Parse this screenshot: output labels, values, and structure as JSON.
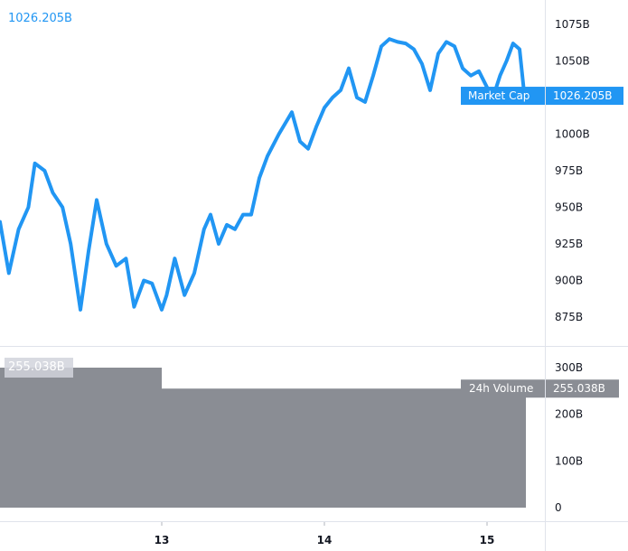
{
  "chart_data": [
    {
      "type": "line",
      "series": [
        {
          "name": "Market Cap",
          "color": "#2196f3",
          "current_value_label": "1026.205B",
          "x": [
            12.0,
            12.06,
            12.12,
            12.18,
            12.22,
            12.28,
            12.33,
            12.39,
            12.44,
            12.5,
            12.55,
            12.6,
            12.66,
            12.72,
            12.78,
            12.83,
            12.89,
            12.94,
            13.0,
            13.03,
            13.08,
            13.14,
            13.2,
            13.26,
            13.3,
            13.35,
            13.4,
            13.45,
            13.5,
            13.55,
            13.6,
            13.65,
            13.72,
            13.8,
            13.85,
            13.9,
            13.95,
            14.0,
            14.05,
            14.1,
            14.15,
            14.2,
            14.25,
            14.3,
            14.35,
            14.4,
            14.45,
            14.5,
            14.55,
            14.6,
            14.65,
            14.7,
            14.75,
            14.8,
            14.85,
            14.9,
            14.95,
            15.0,
            15.04,
            15.08,
            15.12,
            15.16,
            15.2,
            15.23
          ],
          "values": [
            940,
            905,
            935,
            950,
            980,
            975,
            960,
            950,
            925,
            880,
            920,
            955,
            925,
            910,
            915,
            882,
            900,
            898,
            880,
            890,
            915,
            890,
            905,
            935,
            945,
            925,
            938,
            935,
            945,
            945,
            970,
            985,
            1000,
            1015,
            995,
            990,
            1005,
            1018,
            1025,
            1030,
            1045,
            1025,
            1022,
            1040,
            1060,
            1065,
            1063,
            1062,
            1058,
            1048,
            1030,
            1055,
            1063,
            1060,
            1045,
            1040,
            1043,
            1032,
            1026.205,
            1040,
            1050,
            1062,
            1058,
            1026.205
          ],
          "axis_label": "1026.205B"
        }
      ],
      "yticks": [
        "1075B",
        "1050B",
        "1000B",
        "975B",
        "950B",
        "925B",
        "900B",
        "875B"
      ],
      "ytick_values": [
        1075,
        1050,
        1000,
        975,
        950,
        925,
        900,
        875
      ],
      "ylim": [
        867,
        1087
      ]
    },
    {
      "type": "bar",
      "series": [
        {
          "name": "24h Volume",
          "color": "#8a8d94",
          "current_value_label": "255.038B",
          "bars": [
            {
              "x_start": 12.0,
              "x_end": 13.0,
              "value": 300
            },
            {
              "x_start": 13.0,
              "x_end": 15.25,
              "value": 255.038
            }
          ]
        }
      ],
      "legend_value_label": "255.038B",
      "yticks": [
        "300B",
        "200B",
        "100B",
        "0"
      ],
      "ytick_values": [
        300,
        200,
        100,
        0
      ],
      "ylim": [
        0,
        300
      ]
    }
  ],
  "x_axis": {
    "ticks": [
      "13",
      "14",
      "15"
    ],
    "tick_values": [
      13,
      14,
      15
    ],
    "xlim": [
      12.0,
      15.4
    ]
  },
  "colors": {
    "line": "#2196f3",
    "volume": "#8a8d94",
    "grid": "#e0e3eb",
    "text": "#131722",
    "volume_label_bg": "#d1d4dc"
  }
}
